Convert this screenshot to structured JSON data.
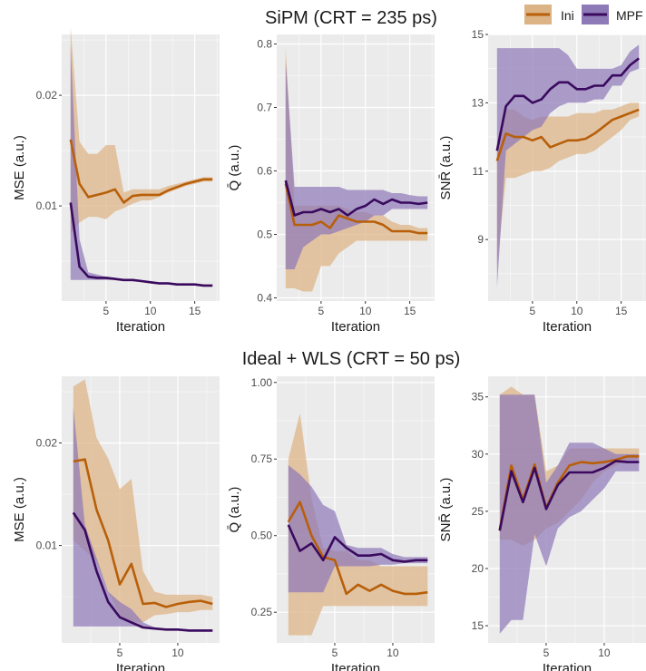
{
  "colors": {
    "ini": "#b85f0a",
    "ini_band": "#dcb384",
    "mpf": "#3a0a5e",
    "mpf_band": "#8f7ab8",
    "panel_bg": "#ebebeb",
    "grid": "#ffffff",
    "text": "#1a1a1a"
  },
  "legend": {
    "position": "top-right",
    "items": [
      {
        "key": "ini",
        "label": "Ini"
      },
      {
        "key": "mpf",
        "label": "MPF"
      }
    ]
  },
  "sections": [
    {
      "title": "SiPM (CRT = 235 ps)"
    },
    {
      "title": "Ideal + WLS (CRT = 50 ps)"
    }
  ],
  "chart_data": [
    {
      "type": "line",
      "row": 0,
      "col": 0,
      "xlabel": "Iteration",
      "ylabel": "MSE (a.u.)",
      "xlim": [
        0,
        17.8
      ],
      "ylim": [
        0.0014,
        0.0255
      ],
      "xticks": [
        5,
        10,
        15
      ],
      "yticks": [
        0.01,
        0.02
      ],
      "yticklabels": [
        "0.01",
        "0.02"
      ],
      "series": [
        {
          "key": "ini",
          "x": [
            1,
            2,
            3,
            4,
            5,
            6,
            7,
            8,
            9,
            10,
            11,
            12,
            13,
            14,
            15,
            16,
            17
          ],
          "y": [
            0.016,
            0.012,
            0.0108,
            0.011,
            0.0112,
            0.0115,
            0.0103,
            0.0109,
            0.011,
            0.011,
            0.011,
            0.0114,
            0.0117,
            0.012,
            0.0122,
            0.0124,
            0.0124
          ],
          "lower": [
            0.0075,
            0.0085,
            0.009,
            0.009,
            0.0088,
            0.0095,
            0.0098,
            0.0102,
            0.0105,
            0.0105,
            0.0108,
            0.0112,
            0.0115,
            0.0118,
            0.012,
            0.0122,
            0.0122
          ],
          "upper": [
            0.0262,
            0.0158,
            0.0147,
            0.0147,
            0.0155,
            0.0155,
            0.0112,
            0.0115,
            0.0115,
            0.0115,
            0.0115,
            0.0118,
            0.012,
            0.0122,
            0.0124,
            0.0126,
            0.0126
          ]
        },
        {
          "key": "mpf",
          "x": [
            1,
            2,
            3,
            4,
            5,
            6,
            7,
            8,
            9,
            10,
            11,
            12,
            13,
            14,
            15,
            16,
            17
          ],
          "y": [
            0.0103,
            0.0045,
            0.0036,
            0.0035,
            0.0035,
            0.0034,
            0.0033,
            0.0033,
            0.0032,
            0.0031,
            0.003,
            0.003,
            0.0029,
            0.0029,
            0.0029,
            0.0028,
            0.0028
          ],
          "lower": [
            0.0033,
            0.0033,
            0.0033,
            0.0033,
            0.0033,
            0.0033,
            0.0033,
            0.0032,
            0.0031,
            0.003,
            0.0029,
            0.0029,
            0.0028,
            0.0028,
            0.0028,
            0.0027,
            0.0027
          ],
          "upper": [
            0.0245,
            0.007,
            0.004,
            0.0038,
            0.0036,
            0.0035,
            0.0034,
            0.0034,
            0.0033,
            0.0032,
            0.0031,
            0.0031,
            0.003,
            0.003,
            0.003,
            0.0029,
            0.0029
          ]
        }
      ]
    },
    {
      "type": "line",
      "row": 0,
      "col": 1,
      "xlabel": "Iteration",
      "ylabel": "Q̄ (a.u.)",
      "xlim": [
        0,
        17.8
      ],
      "ylim": [
        0.395,
        0.815
      ],
      "xticks": [
        5,
        10,
        15
      ],
      "yticks": [
        0.4,
        0.5,
        0.6,
        0.7,
        0.8
      ],
      "yticklabels": [
        "0.4",
        "0.5",
        "0.6",
        "0.7",
        "0.8"
      ],
      "series": [
        {
          "key": "ini",
          "x": [
            1,
            2,
            3,
            4,
            5,
            6,
            7,
            8,
            9,
            10,
            11,
            12,
            13,
            14,
            15,
            16,
            17
          ],
          "y": [
            0.58,
            0.515,
            0.515,
            0.515,
            0.52,
            0.51,
            0.53,
            0.525,
            0.52,
            0.52,
            0.52,
            0.515,
            0.505,
            0.505,
            0.505,
            0.502,
            0.502
          ],
          "lower": [
            0.415,
            0.415,
            0.41,
            0.41,
            0.45,
            0.45,
            0.47,
            0.48,
            0.49,
            0.49,
            0.49,
            0.49,
            0.49,
            0.49,
            0.49,
            0.49,
            0.49
          ],
          "upper": [
            0.795,
            0.545,
            0.545,
            0.545,
            0.545,
            0.545,
            0.545,
            0.54,
            0.535,
            0.535,
            0.53,
            0.53,
            0.52,
            0.515,
            0.515,
            0.51,
            0.51
          ]
        },
        {
          "key": "mpf",
          "x": [
            1,
            2,
            3,
            4,
            5,
            6,
            7,
            8,
            9,
            10,
            11,
            12,
            13,
            14,
            15,
            16,
            17
          ],
          "y": [
            0.585,
            0.53,
            0.535,
            0.535,
            0.54,
            0.535,
            0.54,
            0.53,
            0.54,
            0.545,
            0.555,
            0.548,
            0.555,
            0.55,
            0.55,
            0.548,
            0.55
          ],
          "lower": [
            0.445,
            0.445,
            0.48,
            0.49,
            0.5,
            0.5,
            0.505,
            0.51,
            0.515,
            0.52,
            0.53,
            0.53,
            0.54,
            0.54,
            0.54,
            0.54,
            0.54
          ],
          "upper": [
            0.775,
            0.575,
            0.575,
            0.575,
            0.575,
            0.575,
            0.575,
            0.57,
            0.57,
            0.57,
            0.57,
            0.57,
            0.565,
            0.565,
            0.562,
            0.56,
            0.56
          ]
        }
      ]
    },
    {
      "type": "line",
      "row": 0,
      "col": 2,
      "xlabel": "Iteration",
      "ylabel": "SNR̄ (a.u.)",
      "xlim": [
        0,
        17.8
      ],
      "ylim": [
        7.2,
        15.0
      ],
      "xticks": [
        5,
        10,
        15
      ],
      "yticks": [
        9,
        11,
        13,
        15
      ],
      "yticklabels": [
        "9",
        "11",
        "13",
        "15"
      ],
      "series": [
        {
          "key": "ini",
          "x": [
            1,
            2,
            3,
            4,
            5,
            6,
            7,
            8,
            9,
            10,
            11,
            12,
            13,
            14,
            15,
            16,
            17
          ],
          "y": [
            11.3,
            12.1,
            12.0,
            12.0,
            11.9,
            12.0,
            11.7,
            11.8,
            11.9,
            11.9,
            11.95,
            12.1,
            12.3,
            12.5,
            12.6,
            12.7,
            12.8
          ],
          "lower": [
            8.2,
            10.8,
            10.8,
            10.9,
            11.0,
            11.0,
            11.1,
            11.3,
            11.4,
            11.5,
            11.5,
            11.6,
            11.8,
            12.0,
            12.2,
            12.5,
            12.6
          ],
          "upper": [
            11.6,
            12.8,
            12.8,
            12.6,
            12.5,
            12.6,
            12.6,
            12.6,
            12.6,
            12.7,
            12.7,
            12.7,
            12.8,
            12.8,
            12.9,
            13.0,
            13.0
          ]
        },
        {
          "key": "mpf",
          "x": [
            1,
            2,
            3,
            4,
            5,
            6,
            7,
            8,
            9,
            10,
            11,
            12,
            13,
            14,
            15,
            16,
            17
          ],
          "y": [
            11.6,
            12.9,
            13.2,
            13.2,
            13.0,
            13.1,
            13.4,
            13.6,
            13.6,
            13.4,
            13.4,
            13.5,
            13.5,
            13.8,
            13.8,
            14.1,
            14.3
          ],
          "lower": [
            7.6,
            11.6,
            11.8,
            12.0,
            12.2,
            12.3,
            12.7,
            12.9,
            13.0,
            13.0,
            13.0,
            13.1,
            13.1,
            13.5,
            13.5,
            13.9,
            14.0
          ],
          "upper": [
            14.6,
            14.6,
            14.6,
            14.6,
            14.6,
            14.6,
            14.6,
            14.6,
            14.4,
            14.0,
            14.0,
            14.0,
            14.0,
            14.0,
            14.1,
            14.5,
            14.7
          ]
        }
      ]
    },
    {
      "type": "line",
      "row": 1,
      "col": 0,
      "xlabel": "Iteration",
      "ylabel": "MSE (a.u.)",
      "xlim": [
        0,
        13.6
      ],
      "ylim": [
        0.0005,
        0.0265
      ],
      "xticks": [
        5,
        10
      ],
      "yticks": [
        0.01,
        0.02
      ],
      "yticklabels": [
        "0.01",
        "0.02"
      ],
      "series": [
        {
          "key": "ini",
          "x": [
            1,
            2,
            3,
            4,
            5,
            6,
            7,
            8,
            9,
            10,
            11,
            12,
            13
          ],
          "y": [
            0.0182,
            0.0184,
            0.0135,
            0.0105,
            0.0062,
            0.0082,
            0.0043,
            0.0044,
            0.004,
            0.0043,
            0.0045,
            0.0046,
            0.0043
          ],
          "lower": [
            0.0105,
            0.0095,
            0.0085,
            0.0055,
            0.0032,
            0.0025,
            0.0025,
            0.0032,
            0.0033,
            0.0035,
            0.0035,
            0.0037,
            0.0037
          ],
          "upper": [
            0.0255,
            0.0262,
            0.0205,
            0.0185,
            0.0155,
            0.0165,
            0.0075,
            0.0055,
            0.0052,
            0.0052,
            0.0052,
            0.0052,
            0.005
          ]
        },
        {
          "key": "mpf",
          "x": [
            1,
            2,
            3,
            4,
            5,
            6,
            7,
            8,
            9,
            10,
            11,
            12,
            13
          ],
          "y": [
            0.0132,
            0.0115,
            0.0075,
            0.0045,
            0.003,
            0.0025,
            0.002,
            0.0019,
            0.0018,
            0.0018,
            0.0017,
            0.0017,
            0.0017
          ],
          "lower": [
            0.0021,
            0.0021,
            0.0021,
            0.0021,
            0.0021,
            0.0021,
            0.0021,
            0.0019,
            0.0018,
            0.0018,
            0.0017,
            0.0017,
            0.0017
          ],
          "upper": [
            0.0235,
            0.012,
            0.0088,
            0.0055,
            0.0045,
            0.0038,
            0.0025,
            0.002,
            0.0019,
            0.0019,
            0.0018,
            0.0018,
            0.0018
          ]
        }
      ]
    },
    {
      "type": "line",
      "row": 1,
      "col": 1,
      "xlabel": "Iteration",
      "ylabel": "Q̄ (a.u.)",
      "xlim": [
        0,
        13.6
      ],
      "ylim": [
        0.15,
        1.02
      ],
      "xticks": [
        5,
        10
      ],
      "yticks": [
        0.25,
        0.5,
        0.75,
        1.0
      ],
      "yticklabels": [
        "0.25",
        "0.50",
        "0.75",
        "1.00"
      ],
      "series": [
        {
          "key": "ini",
          "x": [
            1,
            2,
            3,
            4,
            5,
            6,
            7,
            8,
            9,
            10,
            11,
            12,
            13
          ],
          "y": [
            0.545,
            0.61,
            0.5,
            0.43,
            0.42,
            0.31,
            0.34,
            0.32,
            0.34,
            0.32,
            0.31,
            0.31,
            0.315
          ],
          "lower": [
            0.175,
            0.175,
            0.175,
            0.27,
            0.27,
            0.27,
            0.27,
            0.27,
            0.27,
            0.27,
            0.27,
            0.27,
            0.27
          ],
          "upper": [
            0.75,
            0.9,
            0.62,
            0.46,
            0.45,
            0.45,
            0.42,
            0.42,
            0.4,
            0.4,
            0.4,
            0.4,
            0.4
          ]
        },
        {
          "key": "mpf",
          "x": [
            1,
            2,
            3,
            4,
            5,
            6,
            7,
            8,
            9,
            10,
            11,
            12,
            13
          ],
          "y": [
            0.535,
            0.45,
            0.475,
            0.42,
            0.495,
            0.46,
            0.435,
            0.435,
            0.44,
            0.42,
            0.415,
            0.42,
            0.42
          ],
          "lower": [
            0.315,
            0.315,
            0.315,
            0.315,
            0.4,
            0.4,
            0.4,
            0.4,
            0.405,
            0.405,
            0.41,
            0.41,
            0.41
          ],
          "upper": [
            0.73,
            0.7,
            0.66,
            0.6,
            0.58,
            0.47,
            0.46,
            0.46,
            0.46,
            0.44,
            0.43,
            0.43,
            0.43
          ]
        }
      ]
    },
    {
      "type": "line",
      "row": 1,
      "col": 2,
      "xlabel": "Iteration",
      "ylabel": "SNR̄ (a.u.)",
      "xlim": [
        0,
        13.6
      ],
      "ylim": [
        13.5,
        36.8
      ],
      "xticks": [
        5,
        10
      ],
      "yticks": [
        15,
        20,
        25,
        30,
        35
      ],
      "yticklabels": [
        "15",
        "20",
        "25",
        "30",
        "35"
      ],
      "series": [
        {
          "key": "ini",
          "x": [
            1,
            2,
            3,
            4,
            5,
            6,
            7,
            8,
            9,
            10,
            11,
            12,
            13
          ],
          "y": [
            23.4,
            29.0,
            26.0,
            29.1,
            25.3,
            27.5,
            29.0,
            29.3,
            29.2,
            29.3,
            29.5,
            29.8,
            29.8
          ],
          "lower": [
            22.5,
            22.5,
            22.0,
            22.5,
            23.5,
            24.0,
            25.0,
            26.0,
            27.5,
            28.5,
            29.0,
            29.5,
            29.5
          ],
          "upper": [
            35.2,
            35.9,
            35.2,
            35.2,
            28.5,
            29.0,
            30.5,
            30.5,
            30.5,
            30.5,
            30.5,
            30.5,
            30.5
          ]
        },
        {
          "key": "mpf",
          "x": [
            1,
            2,
            3,
            4,
            5,
            6,
            7,
            8,
            9,
            10,
            11,
            12,
            13
          ],
          "y": [
            23.3,
            28.5,
            25.8,
            28.8,
            25.2,
            27.3,
            28.4,
            28.4,
            28.4,
            28.8,
            29.4,
            29.3,
            29.3
          ],
          "lower": [
            14.3,
            15.5,
            15.5,
            23.0,
            20.2,
            23.5,
            24.5,
            25.0,
            26.0,
            27.0,
            28.5,
            28.5,
            28.5
          ],
          "upper": [
            35.2,
            35.2,
            35.2,
            35.2,
            27.5,
            29.0,
            31.0,
            31.0,
            31.0,
            30.5,
            30.0,
            30.0,
            30.0
          ]
        }
      ]
    }
  ]
}
